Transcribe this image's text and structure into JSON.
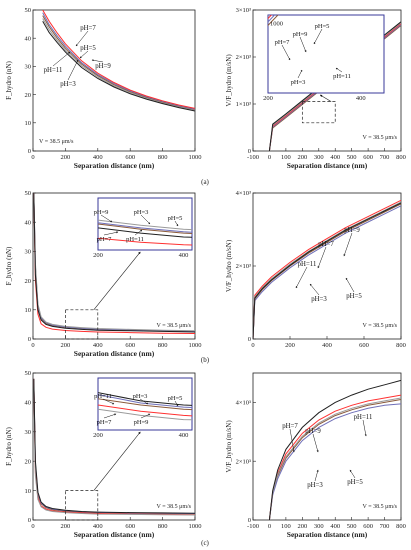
{
  "figure": {
    "row_labels": [
      "(a)",
      "(b)",
      "(c)"
    ],
    "velocity_note": "V = 38.5 μm/s"
  },
  "series_colors": {
    "pH=3": "#8a5a3a",
    "pH=5": "#6f6fb8",
    "pH=7": "#ff3030",
    "pH=9": "#9a9a9a",
    "pH=11": "#202020"
  },
  "chart_data": [
    {
      "id": "a-left",
      "type": "line",
      "row": "(a)",
      "xlabel": "Separation distance (nm)",
      "ylabel": "F_hydro (nN)",
      "xlim": [
        0,
        1000
      ],
      "ylim": [
        0,
        50
      ],
      "xticks": [
        0,
        200,
        400,
        600,
        800,
        1000
      ],
      "yticks": [
        0,
        10,
        20,
        30,
        40,
        50
      ],
      "grid": false,
      "x": [
        60,
        100,
        150,
        200,
        300,
        400,
        500,
        600,
        700,
        800,
        900,
        1000
      ],
      "series": [
        {
          "name": "pH=3",
          "values": [
            48.0,
            44.0,
            40.0,
            36.5,
            30.8,
            26.7,
            23.5,
            21.0,
            19.0,
            17.3,
            15.9,
            14.7
          ]
        },
        {
          "name": "pH=5",
          "values": [
            49.0,
            44.8,
            40.8,
            37.2,
            31.3,
            27.1,
            23.9,
            21.3,
            19.3,
            17.6,
            16.1,
            14.9
          ]
        },
        {
          "name": "pH=7",
          "values": [
            50.0,
            46.0,
            41.8,
            38.0,
            32.0,
            27.6,
            24.3,
            21.6,
            19.5,
            17.8,
            16.3,
            15.1
          ]
        },
        {
          "name": "pH=9",
          "values": [
            47.0,
            43.0,
            39.2,
            35.8,
            30.2,
            26.2,
            23.1,
            20.6,
            18.7,
            17.0,
            15.6,
            14.4
          ]
        },
        {
          "name": "pH=11",
          "values": [
            46.0,
            42.0,
            38.4,
            35.1,
            29.6,
            25.7,
            22.7,
            20.3,
            18.4,
            16.8,
            15.4,
            14.2
          ]
        }
      ],
      "annotations": [
        "pH=7",
        "pH=5",
        "pH=9",
        "pH=11",
        "pH=3"
      ],
      "note": "V = 38.5 μm/s"
    },
    {
      "id": "a-right",
      "type": "line",
      "row": "(a)",
      "xlabel": "Separation distance (nm)",
      "ylabel": "V/F_hydro (m/sN)",
      "xlim": [
        -100,
        800
      ],
      "ylim": [
        0,
        3000
      ],
      "xticks": [
        -100,
        0,
        100,
        200,
        300,
        400,
        500,
        600,
        700,
        800
      ],
      "yticks": [
        0,
        1000,
        2000,
        3000
      ],
      "ytick_labels": [
        "0",
        "1×10³",
        "2×10³",
        "3×10³"
      ],
      "grid": false,
      "x": [
        0,
        20,
        100,
        200,
        300,
        400,
        500,
        600,
        700,
        800
      ],
      "series": [
        {
          "name": "pH=3",
          "values": [
            0,
            490,
            710,
            990,
            1270,
            1550,
            1830,
            2110,
            2390,
            2670
          ]
        },
        {
          "name": "pH=5",
          "values": [
            0,
            510,
            730,
            1010,
            1290,
            1570,
            1850,
            2130,
            2410,
            2690
          ]
        },
        {
          "name": "pH=7",
          "values": [
            0,
            530,
            750,
            1030,
            1310,
            1590,
            1870,
            2150,
            2430,
            2710
          ]
        },
        {
          "name": "pH=9",
          "values": [
            0,
            550,
            770,
            1050,
            1330,
            1610,
            1890,
            2170,
            2450,
            2730
          ]
        },
        {
          "name": "pH=11",
          "values": [
            0,
            570,
            790,
            1070,
            1350,
            1630,
            1910,
            2190,
            2470,
            2750
          ]
        }
      ],
      "inset": {
        "xlim": [
          200,
          450
        ],
        "ylim": [
          600,
          1050
        ],
        "xticks": [
          200,
          400
        ],
        "yticks": [
          1000
        ],
        "annotations": [
          "pH=5",
          "pH=9",
          "pH=7",
          "pH=3",
          "pH=11"
        ]
      },
      "zoom_box": {
        "x": [
          200,
          400
        ],
        "y": [
          600,
          1050
        ]
      },
      "note": "V = 38.5 μm/s"
    },
    {
      "id": "b-left",
      "type": "line",
      "row": "(b)",
      "xlabel": "Separation distance (nm)",
      "ylabel": "F_hydro (nN)",
      "xlim": [
        0,
        1000
      ],
      "ylim": [
        0,
        50
      ],
      "xticks": [
        0,
        200,
        400,
        600,
        800,
        1000
      ],
      "yticks": [
        0,
        10,
        20,
        30,
        40,
        50
      ],
      "grid": false,
      "x": [
        5,
        15,
        30,
        50,
        80,
        120,
        200,
        300,
        400,
        600,
        800,
        1000
      ],
      "series": [
        {
          "name": "pH=3",
          "values": [
            50,
            24,
            11.0,
            7.0,
            5.4,
            4.6,
            4.0,
            3.6,
            3.3,
            3.0,
            2.8,
            2.6
          ]
        },
        {
          "name": "pH=5",
          "values": [
            50,
            25,
            11.5,
            7.3,
            5.6,
            4.8,
            4.1,
            3.7,
            3.4,
            3.1,
            2.9,
            2.7
          ]
        },
        {
          "name": "pH=7",
          "values": [
            50,
            20,
            8.5,
            5.2,
            4.0,
            3.4,
            2.9,
            2.6,
            2.4,
            2.2,
            2.0,
            1.9
          ]
        },
        {
          "name": "pH=9",
          "values": [
            50,
            26,
            12.0,
            7.6,
            5.8,
            5.0,
            4.3,
            3.9,
            3.6,
            3.3,
            3.0,
            2.8
          ]
        },
        {
          "name": "pH=11",
          "values": [
            50,
            22,
            10.0,
            6.5,
            5.0,
            4.3,
            3.7,
            3.3,
            3.0,
            2.8,
            2.6,
            2.4
          ]
        }
      ],
      "inset": {
        "xlim": [
          200,
          420
        ],
        "ylim": [
          2,
          6
        ],
        "xticks": [
          200,
          400
        ],
        "yticks": [],
        "annotations": [
          "pH=9",
          "pH=3",
          "pH=5",
          "pH=7",
          "pH=11"
        ]
      },
      "zoom_box": {
        "x": [
          200,
          400
        ],
        "y": [
          0,
          10
        ]
      },
      "note": "V = 38.5 μm/s"
    },
    {
      "id": "b-right",
      "type": "line",
      "row": "(b)",
      "xlabel": "",
      "ylabel": "V/F_hydro (m/sN)",
      "xlim": [
        0,
        800
      ],
      "ylim": [
        0,
        4000
      ],
      "xticks": [
        0,
        200,
        400,
        600,
        800
      ],
      "yticks": [
        0,
        2000,
        4000
      ],
      "ytick_labels": [
        "0",
        "2×10³",
        "4×10³"
      ],
      "grid": false,
      "x": [
        0,
        10,
        50,
        100,
        200,
        300,
        400,
        500,
        600,
        700,
        800
      ],
      "series": [
        {
          "name": "pH=3",
          "values": [
            0,
            1100,
            1350,
            1600,
            2000,
            2350,
            2650,
            2950,
            3200,
            3450,
            3700
          ]
        },
        {
          "name": "pH=5",
          "values": [
            0,
            1050,
            1300,
            1550,
            1950,
            2300,
            2600,
            2900,
            3150,
            3400,
            3650
          ]
        },
        {
          "name": "pH=7",
          "values": [
            0,
            1200,
            1450,
            1700,
            2100,
            2450,
            2750,
            3050,
            3300,
            3550,
            3800
          ]
        },
        {
          "name": "pH=9",
          "values": [
            0,
            1150,
            1400,
            1650,
            2050,
            2400,
            2700,
            3000,
            3250,
            3500,
            3750
          ]
        },
        {
          "name": "pH=11",
          "values": [
            0,
            1120,
            1380,
            1620,
            2020,
            2380,
            2680,
            2980,
            3230,
            3480,
            3730
          ]
        }
      ],
      "annotations": [
        "pH=11",
        "pH=7",
        "pH=9",
        "pH=3",
        "pH=5"
      ],
      "note": "V = 38.5 μm/s"
    },
    {
      "id": "c-left",
      "type": "line",
      "row": "(c)",
      "xlabel": "Separation distance (nm)",
      "ylabel": "F_hydro (nN)",
      "xlim": [
        0,
        1000
      ],
      "ylim": [
        0,
        50
      ],
      "xticks": [
        0,
        200,
        400,
        600,
        800,
        1000
      ],
      "yticks": [
        0,
        10,
        20,
        30,
        40,
        50
      ],
      "grid": false,
      "x": [
        5,
        15,
        30,
        50,
        80,
        120,
        200,
        300,
        400,
        600,
        800,
        1000
      ],
      "series": [
        {
          "name": "pH=3",
          "values": [
            48,
            18,
            8.5,
            5.5,
            4.2,
            3.5,
            3.0,
            2.7,
            2.5,
            2.3,
            2.2,
            2.1
          ]
        },
        {
          "name": "pH=5",
          "values": [
            48,
            19,
            9.0,
            5.8,
            4.4,
            3.7,
            3.2,
            2.8,
            2.6,
            2.4,
            2.3,
            2.2
          ]
        },
        {
          "name": "pH=7",
          "values": [
            48,
            16,
            7.5,
            4.8,
            3.7,
            3.1,
            2.7,
            2.4,
            2.2,
            2.0,
            1.9,
            1.8
          ]
        },
        {
          "name": "pH=9",
          "values": [
            48,
            15,
            7.0,
            4.5,
            3.4,
            2.9,
            2.5,
            2.2,
            2.0,
            1.9,
            1.8,
            1.7
          ]
        },
        {
          "name": "pH=11",
          "values": [
            48,
            20,
            9.5,
            6.1,
            4.6,
            3.9,
            3.3,
            2.9,
            2.7,
            2.5,
            2.4,
            2.3
          ]
        }
      ],
      "inset": {
        "xlim": [
          200,
          420
        ],
        "ylim": [
          1.5,
          4
        ],
        "xticks": [
          200,
          400
        ],
        "yticks": [],
        "annotations": [
          "pH=11",
          "pH=3",
          "pH=5",
          "pH=7",
          "pH=9"
        ]
      },
      "zoom_box": {
        "x": [
          200,
          400
        ],
        "y": [
          0,
          10
        ]
      },
      "note": "V = 38.5 μm/s"
    },
    {
      "id": "c-right",
      "type": "line",
      "row": "(c)",
      "xlabel": "Separation distance (nm)",
      "ylabel": "V/F_hydro (m/sN)",
      "xlim": [
        -100,
        800
      ],
      "ylim": [
        0,
        5000
      ],
      "xticks": [
        -100,
        0,
        100,
        200,
        300,
        400,
        500,
        600,
        700,
        800
      ],
      "yticks": [
        0,
        2000,
        4000
      ],
      "ytick_labels": [
        "0",
        "2×10³",
        "4×10³"
      ],
      "grid": false,
      "x": [
        0,
        20,
        50,
        100,
        200,
        300,
        400,
        500,
        600,
        700,
        800
      ],
      "series": [
        {
          "name": "pH=3",
          "values": [
            0,
            900,
            1500,
            2100,
            2800,
            3250,
            3550,
            3750,
            3900,
            4000,
            4100
          ]
        },
        {
          "name": "pH=5",
          "values": [
            0,
            850,
            1400,
            2000,
            2700,
            3150,
            3450,
            3650,
            3800,
            3900,
            3950
          ]
        },
        {
          "name": "pH=7",
          "values": [
            0,
            950,
            1600,
            2250,
            2950,
            3400,
            3700,
            3900,
            4050,
            4150,
            4250
          ]
        },
        {
          "name": "pH=9",
          "values": [
            0,
            920,
            1550,
            2150,
            2850,
            3300,
            3600,
            3800,
            3950,
            4050,
            4150
          ]
        },
        {
          "name": "pH=11",
          "values": [
            0,
            1000,
            1700,
            2400,
            3150,
            3650,
            4000,
            4250,
            4450,
            4600,
            4750
          ]
        }
      ],
      "annotations": [
        "pH=11",
        "pH=7",
        "pH=9",
        "pH=3",
        "pH=5"
      ],
      "note": "V = 38.5 μm/s"
    }
  ]
}
